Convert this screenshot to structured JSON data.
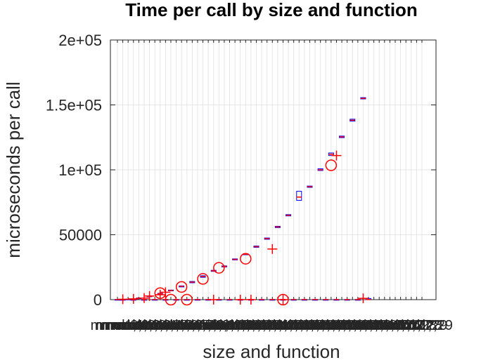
{
  "chart_data": {
    "type": "box",
    "title": "Time per call by size and function",
    "xlabel": "size and function",
    "ylabel": "microseconds per call",
    "ylim": [
      0,
      200000
    ],
    "yticks": [
      0,
      50000,
      100000,
      150000,
      200000
    ],
    "ytick_labels": [
      "0",
      "50000",
      "1e+05",
      "1.5e+05",
      "2e+05"
    ],
    "grid": true,
    "categories": [
      "mmul1,1",
      "mmul2,1",
      "mmul1,2",
      "mmul2,2",
      "mmul1,3",
      "mmul2,3",
      "mmul1,4",
      "mmul2,4",
      "mmul1,5",
      "mmul2,5",
      "mmul1,6",
      "mmul2,6",
      "mmul1,7",
      "mmul2,7",
      "mmul1,8",
      "mmul2,8",
      "mmul1,9",
      "mmul2,9",
      "mmul1,10",
      "mmul2,10",
      "mmul1,11",
      "mmul2,11",
      "mmul1,12",
      "mmul2,12",
      "mmul1,13",
      "mmul2,13",
      "mmul1,14",
      "mmul2,14",
      "mmul1,15",
      "mmul2,15",
      "mmul1,16",
      "mmul2,16",
      "mmul1,17",
      "mmul2,17",
      "mmul1,18",
      "mmul2,18",
      "mmul1,19",
      "mmul2,19",
      "mmul1,20",
      "mmul2,20",
      "mmul1,21",
      "mmul2,21",
      "mmul1,22",
      "mmul2,22",
      "mmul1,23",
      "mmul2,23",
      "mmul1,24",
      "mmul2,24",
      "mmul1,25",
      "mmul2,25",
      "mmul1,26",
      "mmul2,26",
      "mmul1,27",
      "mmul2,27",
      "mmul1,28",
      "mmul2,28",
      "mmul1,29",
      "mmul2,29"
    ],
    "boxes": [
      {
        "i": 0,
        "q1": 50,
        "median": 80,
        "q3": 110
      },
      {
        "i": 2,
        "q1": 200,
        "median": 300,
        "q3": 400
      },
      {
        "i": 4,
        "q1": 900,
        "median": 1100,
        "q3": 1300
      },
      {
        "i": 6,
        "q1": 2400,
        "median": 2600,
        "q3": 2800
      },
      {
        "i": 8,
        "q1": 4300,
        "median": 4600,
        "q3": 4900
      },
      {
        "i": 10,
        "q1": 6800,
        "median": 7100,
        "q3": 7400
      },
      {
        "i": 12,
        "q1": 9800,
        "median": 10200,
        "q3": 10600
      },
      {
        "i": 14,
        "q1": 13000,
        "median": 13500,
        "q3": 14000
      },
      {
        "i": 16,
        "q1": 17200,
        "median": 17800,
        "q3": 18400
      },
      {
        "i": 18,
        "q1": 21800,
        "median": 22200,
        "q3": 22600
      },
      {
        "i": 20,
        "q1": 25200,
        "median": 25600,
        "q3": 26000
      },
      {
        "i": 22,
        "q1": 30600,
        "median": 31000,
        "q3": 31400
      },
      {
        "i": 24,
        "q1": 34600,
        "median": 35000,
        "q3": 35400
      },
      {
        "i": 26,
        "q1": 40300,
        "median": 40800,
        "q3": 41300
      },
      {
        "i": 28,
        "q1": 46500,
        "median": 47000,
        "q3": 47500
      },
      {
        "i": 30,
        "q1": 55500,
        "median": 56000,
        "q3": 56500
      },
      {
        "i": 32,
        "q1": 64500,
        "median": 65000,
        "q3": 65500
      },
      {
        "i": 34,
        "q1": 76500,
        "median": 79000,
        "q3": 83500
      },
      {
        "i": 36,
        "q1": 86500,
        "median": 87000,
        "q3": 87500
      },
      {
        "i": 38,
        "q1": 99500,
        "median": 100000,
        "q3": 100800
      },
      {
        "i": 40,
        "q1": 111000,
        "median": 112000,
        "q3": 113000
      },
      {
        "i": 42,
        "q1": 124800,
        "median": 125400,
        "q3": 126000
      },
      {
        "i": 44,
        "q1": 137500,
        "median": 138200,
        "q3": 139000
      },
      {
        "i": 46,
        "q1": 154600,
        "median": 155000,
        "q3": 155600
      },
      {
        "i": 1,
        "q1": 30,
        "median": 60,
        "q3": 90
      },
      {
        "i": 3,
        "q1": 30,
        "median": 60,
        "q3": 90
      },
      {
        "i": 5,
        "q1": 30,
        "median": 60,
        "q3": 90
      },
      {
        "i": 7,
        "q1": 30,
        "median": 60,
        "q3": 90
      },
      {
        "i": 9,
        "q1": 30,
        "median": 60,
        "q3": 90
      },
      {
        "i": 11,
        "q1": 30,
        "median": 60,
        "q3": 90
      },
      {
        "i": 13,
        "q1": 30,
        "median": 60,
        "q3": 90
      },
      {
        "i": 15,
        "q1": 30,
        "median": 60,
        "q3": 90
      },
      {
        "i": 17,
        "q1": 30,
        "median": 60,
        "q3": 90
      },
      {
        "i": 19,
        "q1": 30,
        "median": 60,
        "q3": 90
      },
      {
        "i": 21,
        "q1": 30,
        "median": 60,
        "q3": 90
      },
      {
        "i": 23,
        "q1": 30,
        "median": 60,
        "q3": 90
      },
      {
        "i": 25,
        "q1": 30,
        "median": 60,
        "q3": 90
      },
      {
        "i": 27,
        "q1": 30,
        "median": 60,
        "q3": 90
      },
      {
        "i": 29,
        "q1": 30,
        "median": 60,
        "q3": 90
      },
      {
        "i": 31,
        "q1": 30,
        "median": 60,
        "q3": 90
      },
      {
        "i": 33,
        "q1": 30,
        "median": 60,
        "q3": 90
      },
      {
        "i": 35,
        "q1": 30,
        "median": 60,
        "q3": 90
      },
      {
        "i": 37,
        "q1": 30,
        "median": 60,
        "q3": 90
      },
      {
        "i": 39,
        "q1": 30,
        "median": 60,
        "q3": 90
      },
      {
        "i": 41,
        "q1": 30,
        "median": 60,
        "q3": 90
      },
      {
        "i": 43,
        "q1": 30,
        "median": 60,
        "q3": 90
      },
      {
        "i": 45,
        "q1": 30,
        "median": 60,
        "q3": 90
      },
      {
        "i": 47,
        "q1": 30,
        "median": 60,
        "q3": 900
      }
    ],
    "outliers": [
      {
        "i": 1,
        "value": 300,
        "marker": "plus"
      },
      {
        "i": 3,
        "value": 600,
        "marker": "plus"
      },
      {
        "i": 5,
        "value": 1200,
        "marker": "plus"
      },
      {
        "i": 6,
        "value": 2800,
        "marker": "plus"
      },
      {
        "i": 8,
        "value": 3800,
        "marker": "plus"
      },
      {
        "i": 8,
        "value": 5000,
        "marker": "circle"
      },
      {
        "i": 9,
        "value": 5700,
        "marker": "plus"
      },
      {
        "i": 10,
        "value": 0,
        "marker": "circle"
      },
      {
        "i": 12,
        "value": 9800,
        "marker": "circle"
      },
      {
        "i": 13,
        "value": 0,
        "marker": "circle"
      },
      {
        "i": 16,
        "value": 16000,
        "marker": "circle"
      },
      {
        "i": 18,
        "value": 0,
        "marker": "plus"
      },
      {
        "i": 19,
        "value": 24500,
        "marker": "circle"
      },
      {
        "i": 23,
        "value": 0,
        "marker": "plus"
      },
      {
        "i": 24,
        "value": 31500,
        "marker": "circle"
      },
      {
        "i": 25,
        "value": 0,
        "marker": "plus"
      },
      {
        "i": 29,
        "value": 39000,
        "marker": "plus"
      },
      {
        "i": 31,
        "value": 0,
        "marker": "circle"
      },
      {
        "i": 31,
        "value": 0,
        "marker": "plus"
      },
      {
        "i": 40,
        "value": 103500,
        "marker": "circle"
      },
      {
        "i": 41,
        "value": 111000,
        "marker": "plus"
      },
      {
        "i": 46,
        "value": 1000,
        "marker": "plus"
      }
    ]
  },
  "colors": {
    "box": "#0000ff",
    "median": "#ff0000",
    "outlier": "#ff0000",
    "grid": "#e6e6e6",
    "axis": "#262626"
  }
}
